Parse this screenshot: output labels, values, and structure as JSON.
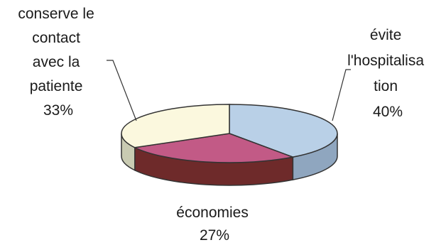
{
  "chart_data": {
    "type": "pie",
    "title": "",
    "style": "3d",
    "slices": [
      {
        "label_lines": [
          "évite",
          "l'hospitalisa",
          "tion"
        ],
        "value": 40,
        "value_label": "40%",
        "color_top": "#b9d0e7",
        "color_side": "#8fa6bf"
      },
      {
        "label_lines": [
          "économies"
        ],
        "value": 27,
        "value_label": "27%",
        "color_top": "#c25a86",
        "color_side": "#6e2a2a"
      },
      {
        "label_lines": [
          "conserve le",
          "contact",
          "avec la",
          "patiente"
        ],
        "value": 33,
        "value_label": "33%",
        "color_top": "#fbf8de",
        "color_side": "#c9cbb2"
      }
    ],
    "legend": "none"
  }
}
